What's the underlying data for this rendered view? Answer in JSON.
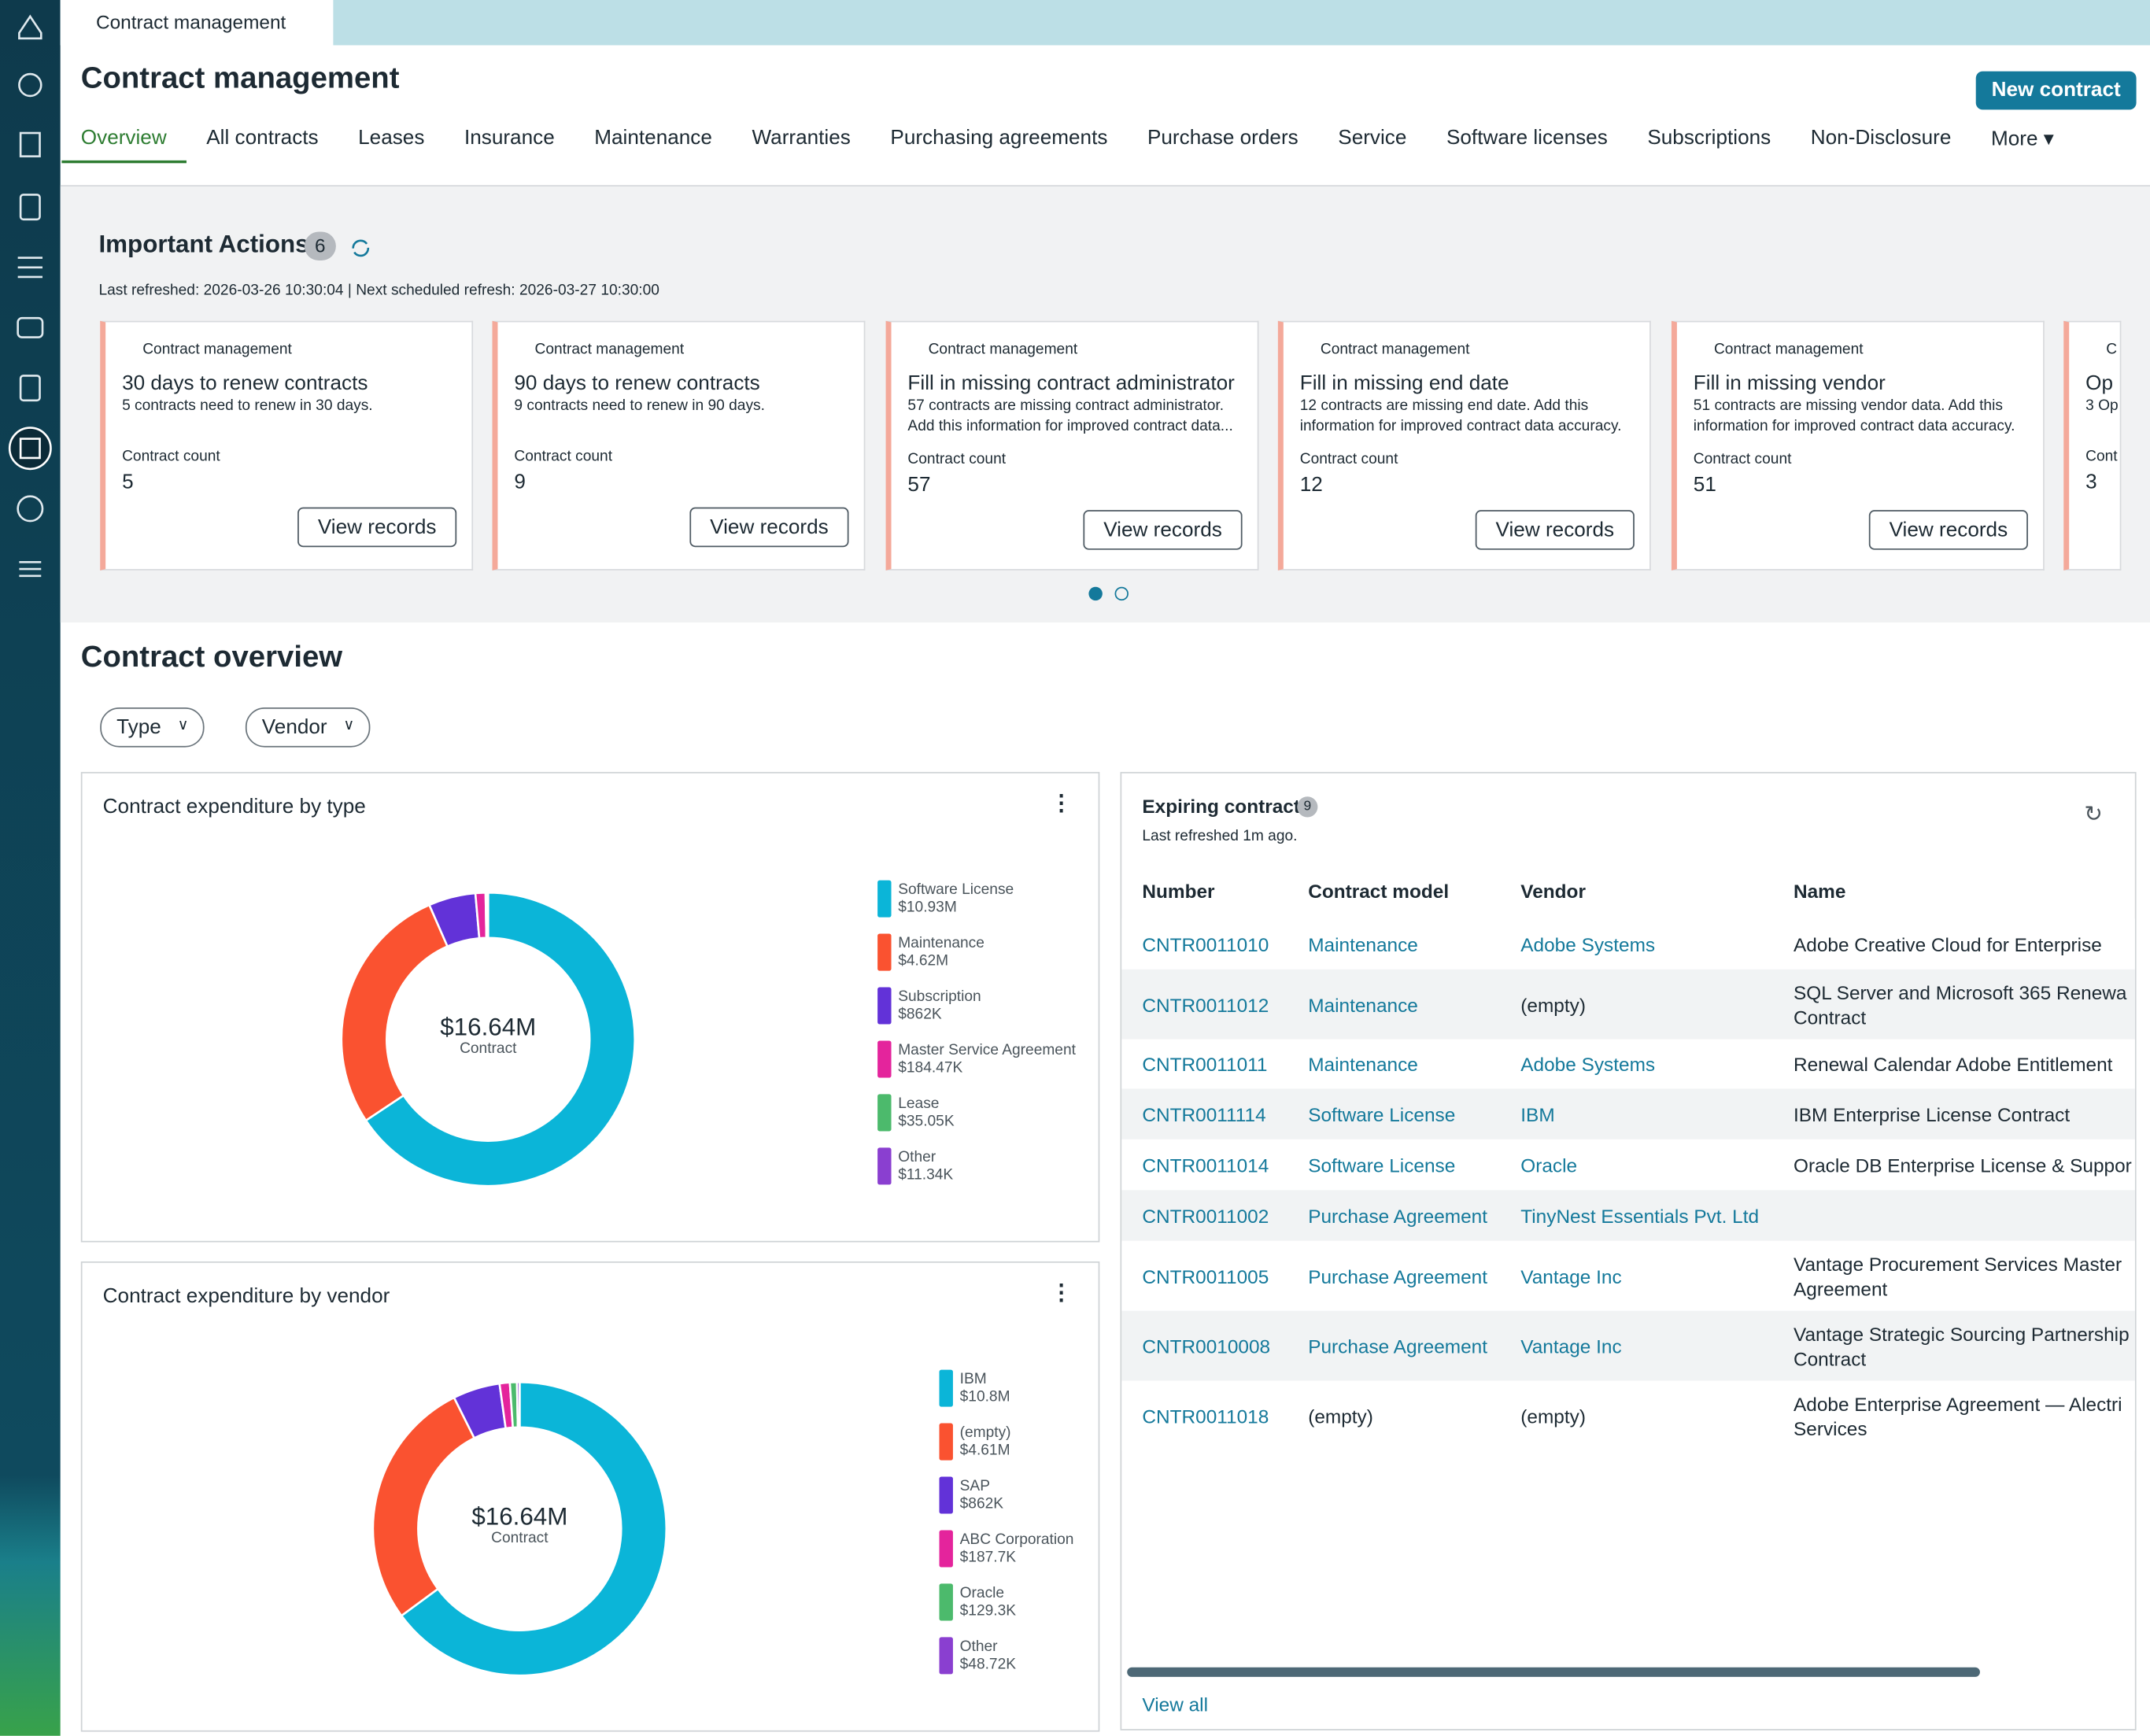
{
  "tab": {
    "title": "Contract management"
  },
  "header": {
    "title": "Contract management",
    "button": "New contract"
  },
  "nav": [
    "Overview",
    "All contracts",
    "Leases",
    "Insurance",
    "Maintenance",
    "Warranties",
    "Purchasing agreements",
    "Purchase orders",
    "Service",
    "Software licenses",
    "Subscriptions",
    "Non-Disclosure",
    "More"
  ],
  "actions": {
    "title": "Important Actions",
    "count": 6,
    "refresh": "Last refreshed: 2026-03-26 10:30:04 | Next scheduled refresh: 2026-03-27 10:30:00",
    "cards": [
      {
        "source": "Contract management",
        "title": "30 days to renew contracts",
        "desc": "5 contracts need to renew in 30 days.",
        "count_label": "Contract count",
        "count": 5,
        "button": "View records"
      },
      {
        "source": "Contract management",
        "title": "90 days to renew contracts",
        "desc": "9 contracts need to renew in 90 days.",
        "count_label": "Contract count",
        "count": 9,
        "button": "View records"
      },
      {
        "source": "Contract management",
        "title": "Fill in missing contract administrator",
        "desc": "57 contracts are missing contract administrator. Add this information for improved contract data...",
        "count_label": "Contract count",
        "count": 57,
        "button": "View records"
      },
      {
        "source": "Contract management",
        "title": "Fill in missing end date",
        "desc": "12 contracts are missing end date. Add this information for improved contract data accuracy.",
        "count_label": "Contract count",
        "count": 12,
        "button": "View records"
      },
      {
        "source": "Contract management",
        "title": "Fill in missing vendor",
        "desc": "51 contracts are missing vendor data. Add this information for improved contract data accuracy.",
        "count_label": "Contract count",
        "count": 51,
        "button": "View records"
      },
      {
        "source": "C",
        "title": "Op",
        "desc": "3 Op",
        "count_label": "Cont",
        "count": 3,
        "button": ""
      }
    ]
  },
  "overview": {
    "title": "Contract overview",
    "filters": [
      "Type",
      "Vendor"
    ]
  },
  "chart_data": [
    {
      "type": "donut",
      "title": "Contract expenditure by type",
      "center_label": "$16.64M",
      "center_sublabel": "Contract",
      "categories": [
        "Software License",
        "Maintenance",
        "Subscription",
        "Master Service Agreement",
        "Lease",
        "Other"
      ],
      "values": [
        10930000,
        4620000,
        862000,
        184470,
        35050,
        11340
      ],
      "value_labels": [
        "$10.93M",
        "$4.62M",
        "$862K",
        "$184.47K",
        "$35.05K",
        "$11.34K"
      ],
      "colors": [
        "#0bb5d8",
        "#fa5230",
        "#6232d8",
        "#e4249c",
        "#4cba6c",
        "#8a3fd0"
      ]
    },
    {
      "type": "donut",
      "title": "Contract expenditure by vendor",
      "center_label": "$16.64M",
      "center_sublabel": "Contract",
      "categories": [
        "IBM",
        "(empty)",
        "SAP",
        "ABC Corporation",
        "Oracle",
        "Other"
      ],
      "values": [
        10800000,
        4610000,
        862000,
        187700,
        129300,
        48720
      ],
      "value_labels": [
        "$10.8M",
        "$4.61M",
        "$862K",
        "$187.7K",
        "$129.3K",
        "$48.72K"
      ],
      "colors": [
        "#0bb5d8",
        "#fa5230",
        "#6232d8",
        "#e4249c",
        "#4cba6c",
        "#8a3fd0"
      ]
    }
  ],
  "expiring": {
    "title": "Expiring contract",
    "count": 9,
    "refresh": "Last refreshed 1m ago.",
    "columns": [
      "Number",
      "Contract model",
      "Vendor",
      "Name"
    ],
    "rows": [
      [
        "CNTR0011010",
        "Maintenance",
        "Adobe Systems",
        "Adobe Creative Cloud for Enterprise"
      ],
      [
        "CNTR0011012",
        "Maintenance",
        "(empty)",
        "SQL Server and Microsoft 365 Renewa Contract"
      ],
      [
        "CNTR0011011",
        "Maintenance",
        "Adobe Systems",
        "Renewal Calendar Adobe Entitlement"
      ],
      [
        "CNTR0011114",
        "Software License",
        "IBM",
        "IBM Enterprise License Contract"
      ],
      [
        "CNTR0011014",
        "Software License",
        "Oracle",
        "Oracle DB Enterprise License & Suppor"
      ],
      [
        "CNTR0011002",
        "Purchase Agreement",
        "TinyNest Essentials Pvt. Ltd",
        ""
      ],
      [
        "CNTR0011005",
        "Purchase Agreement",
        "Vantage Inc",
        "Vantage Procurement Services Master Agreement"
      ],
      [
        "CNTR0010008",
        "Purchase Agreement",
        "Vantage Inc",
        "Vantage Strategic Sourcing Partnership Contract"
      ],
      [
        "CNTR0011018",
        "(empty)",
        "(empty)",
        "Adobe Enterprise Agreement — Alectri Services"
      ]
    ],
    "view_all": "View all"
  }
}
